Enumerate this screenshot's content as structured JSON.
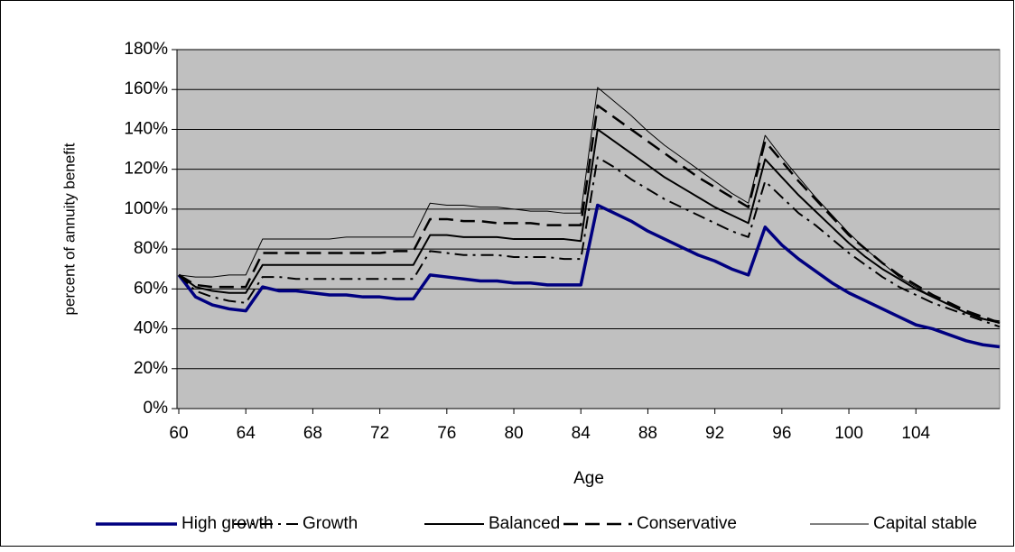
{
  "chart_data": {
    "type": "line",
    "x_label": "Age",
    "y_label": "percent of annuity benefit",
    "x": [
      60,
      61,
      62,
      63,
      64,
      65,
      66,
      67,
      68,
      69,
      70,
      71,
      72,
      73,
      74,
      75,
      76,
      77,
      78,
      79,
      80,
      81,
      82,
      83,
      84,
      85,
      86,
      87,
      88,
      89,
      90,
      91,
      92,
      93,
      94,
      95,
      96,
      97,
      98,
      99,
      100,
      101,
      102,
      103,
      104,
      105,
      106,
      107,
      108,
      109
    ],
    "xlim": [
      60,
      109
    ],
    "xticks": [
      60,
      64,
      68,
      72,
      76,
      80,
      84,
      88,
      92,
      96,
      100,
      104
    ],
    "ylim": [
      0,
      180
    ],
    "yticks": [
      {
        "value": 0,
        "label": "0%"
      },
      {
        "value": 20,
        "label": "20%"
      },
      {
        "value": 40,
        "label": "40%"
      },
      {
        "value": 60,
        "label": "60%"
      },
      {
        "value": 80,
        "label": "80%"
      },
      {
        "value": 100,
        "label": "100%"
      },
      {
        "value": 120,
        "label": "120%"
      },
      {
        "value": 140,
        "label": "140%"
      },
      {
        "value": 160,
        "label": "160%"
      },
      {
        "value": 180,
        "label": "180%"
      }
    ],
    "grid": true,
    "legend": "bottom",
    "background": "#c0c0c0",
    "series": [
      {
        "name": "High growth",
        "color": "#000080",
        "style": "thick",
        "values": [
          67,
          56,
          52,
          50,
          49,
          61,
          59,
          59,
          58,
          57,
          57,
          56,
          56,
          55,
          55,
          67,
          66,
          65,
          64,
          64,
          63,
          63,
          62,
          62,
          62,
          102,
          98,
          94,
          89,
          85,
          81,
          77,
          74,
          70,
          67,
          91,
          82,
          75,
          69,
          63,
          58,
          54,
          50,
          46,
          42,
          40,
          37,
          34,
          32,
          31
        ]
      },
      {
        "name": "Growth",
        "color": "#000000",
        "style": "dash-dot",
        "values": [
          67,
          59,
          56,
          54,
          53,
          66,
          66,
          65,
          65,
          65,
          65,
          65,
          65,
          65,
          65,
          79,
          78,
          77,
          77,
          77,
          76,
          76,
          76,
          75,
          75,
          126,
          121,
          115,
          110,
          105,
          101,
          97,
          93,
          89,
          86,
          114,
          106,
          98,
          92,
          85,
          78,
          72,
          66,
          61,
          57,
          53,
          50,
          47,
          44,
          41
        ]
      },
      {
        "name": "Balanced",
        "color": "#000000",
        "style": "solid",
        "values": [
          67,
          61,
          59,
          58,
          58,
          72,
          72,
          72,
          72,
          72,
          72,
          72,
          72,
          72,
          72,
          87,
          87,
          86,
          86,
          86,
          85,
          85,
          85,
          85,
          84,
          140,
          134,
          128,
          122,
          116,
          111,
          106,
          101,
          97,
          93,
          125,
          116,
          107,
          99,
          91,
          83,
          76,
          70,
          65,
          60,
          56,
          52,
          48,
          45,
          43
        ]
      },
      {
        "name": "Conservative",
        "color": "#000000",
        "style": "dashed",
        "values": [
          67,
          62,
          61,
          61,
          61,
          78,
          78,
          78,
          78,
          78,
          78,
          78,
          78,
          79,
          79,
          95,
          95,
          94,
          94,
          93,
          93,
          93,
          92,
          92,
          92,
          152,
          146,
          140,
          134,
          128,
          122,
          116,
          111,
          106,
          101,
          134,
          124,
          114,
          105,
          96,
          87,
          80,
          73,
          67,
          62,
          57,
          53,
          49,
          46,
          43
        ]
      },
      {
        "name": "Capital stable",
        "color": "#000000",
        "style": "thin",
        "values": [
          67,
          66,
          66,
          67,
          67,
          85,
          85,
          85,
          85,
          85,
          86,
          86,
          86,
          86,
          86,
          103,
          102,
          102,
          101,
          101,
          100,
          99,
          99,
          98,
          98,
          161,
          154,
          147,
          139,
          132,
          126,
          120,
          114,
          108,
          103,
          137,
          126,
          116,
          106,
          97,
          88,
          80,
          73,
          66,
          61,
          56,
          52,
          48,
          45,
          44
        ]
      }
    ]
  }
}
